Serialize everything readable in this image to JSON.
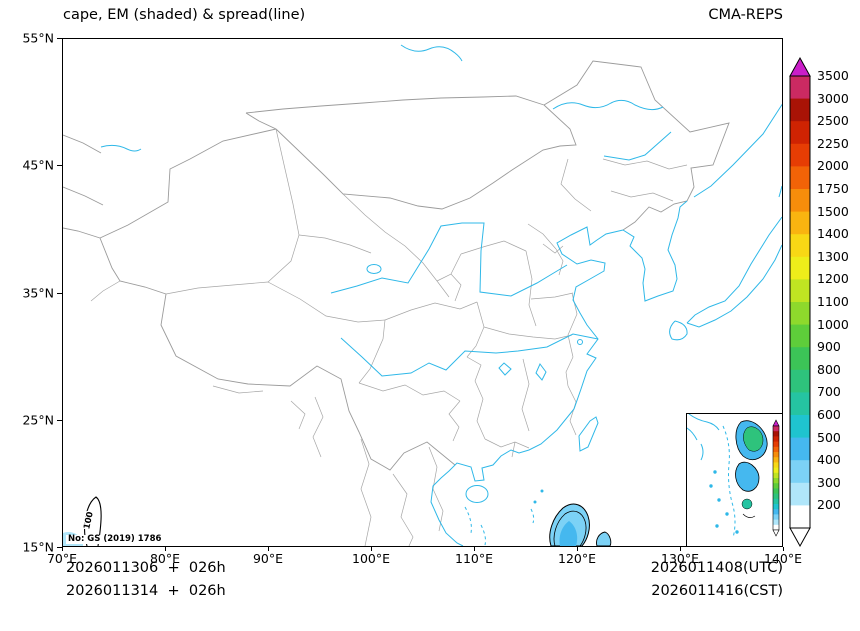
{
  "header": {
    "title": "cape, EM (shaded) & spread(line)",
    "model": "CMA-REPS"
  },
  "axes": {
    "x_ticks": [
      "70°E",
      "80°E",
      "90°E",
      "100°E",
      "110°E",
      "120°E",
      "130°E",
      "140°E"
    ],
    "y_ticks": [
      "55°N",
      "45°N",
      "35°N",
      "25°N",
      "15°N"
    ]
  },
  "note": "No: GS (2019) 1786",
  "contour_label": "100",
  "footer": {
    "left_line1": "2026011306  +  026h",
    "left_line2": "2026011314  +  026h",
    "right_line1": "2026011408(UTC)",
    "right_line2": "2026011416(CST)"
  },
  "colors": {
    "coastline": "#2fb8e8",
    "country_border": "#9b9b9b",
    "province_border": "#a6a6a6",
    "contour": "#000000"
  },
  "chart_data": {
    "type": "heatmap",
    "title": "cape, EM (shaded) & spread(line)",
    "model": "CMA-REPS",
    "variable": "CAPE",
    "shaded_field": "ensemble mean (EM)",
    "line_field": "ensemble spread",
    "x_axis": {
      "label": "longitude",
      "range_deg_east": [
        70,
        140
      ],
      "ticks": [
        70,
        80,
        90,
        100,
        110,
        120,
        130,
        140
      ]
    },
    "y_axis": {
      "label": "latitude",
      "range_deg_north": [
        15,
        55
      ],
      "ticks": [
        15,
        25,
        35,
        45,
        55
      ]
    },
    "init_label_utc": "2026011306  +  026h",
    "init_label_cst": "2026011314  +  026h",
    "valid_label_utc": "2026011408(UTC)",
    "valid_label_cst": "2026011416(CST)",
    "colorbar": {
      "levels_bottom_to_top": [
        200,
        300,
        400,
        500,
        600,
        700,
        800,
        900,
        1000,
        1100,
        1200,
        1300,
        1400,
        1500,
        1750,
        2000,
        2250,
        2500,
        3000,
        3500
      ],
      "band_colors_bottom_to_top": [
        "#ffffff",
        "#b0e6fa",
        "#7cd2f6",
        "#45b8ef",
        "#1fc4cf",
        "#25c4a2",
        "#2ec37c",
        "#3cc457",
        "#5ecd3a",
        "#8ed92c",
        "#c0e422",
        "#eeee1a",
        "#f8d815",
        "#f9b410",
        "#f68d0b",
        "#f26307",
        "#e63d04",
        "#cf2302",
        "#a91306",
        "#cb2a62"
      ],
      "top_arrow_color": "#cb1ec9",
      "bottom_arrow_color": "#ffffff"
    },
    "spread_contour_labels": [
      100
    ],
    "visible_shaded_features": [
      {
        "approx_location": "near 119-121E, 15-17N (south of map, Luzon area)",
        "approx_values_Jkg": "200-500"
      },
      {
        "approx_location": "South China Sea inset (bottom-right)",
        "approx_values_Jkg": "200-800"
      },
      {
        "approx_location": "near 71-72E, 15-17N (bottom-left corner)",
        "approx_values_Jkg": "200-300"
      }
    ]
  }
}
